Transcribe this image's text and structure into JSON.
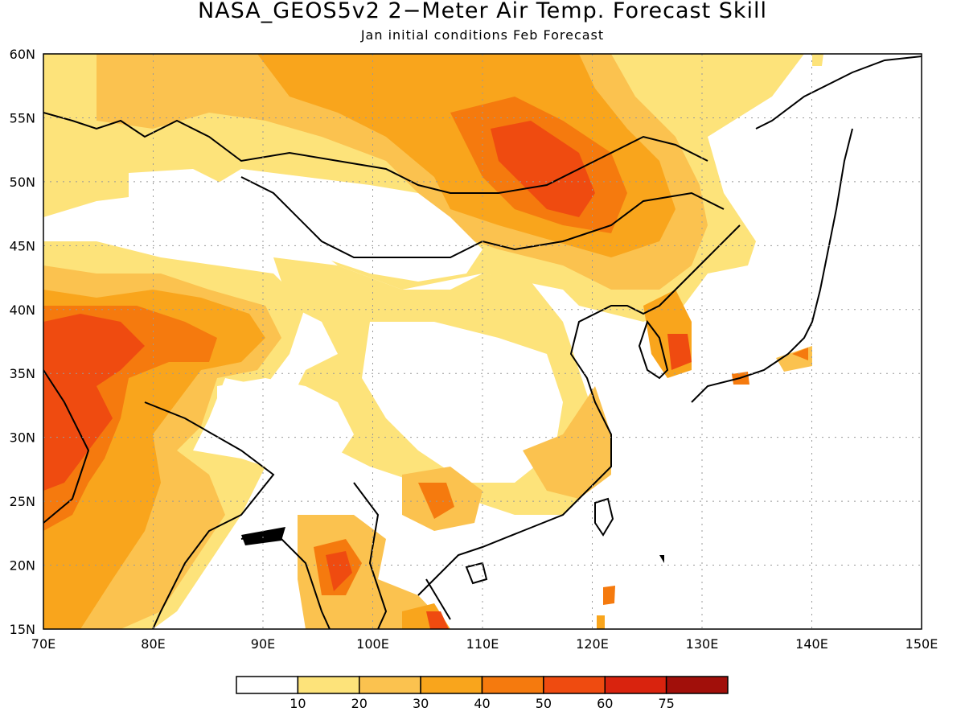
{
  "title": "NASA_GEOS5v2 2−Meter Air Temp. Forecast Skill",
  "subtitle": "Jan initial conditions  Feb Forecast",
  "map": {
    "region": "East Asia",
    "lon_range": [
      70,
      150
    ],
    "lat_range": [
      15,
      60
    ],
    "lon_ticks": [
      "70E",
      "80E",
      "90E",
      "100E",
      "110E",
      "120E",
      "130E",
      "140E",
      "150E"
    ],
    "lat_ticks": [
      "15N",
      "20N",
      "25N",
      "30N",
      "35N",
      "40N",
      "45N",
      "50N",
      "55N",
      "60N"
    ],
    "grid": "dotted"
  },
  "colorbar": {
    "labels": [
      "10",
      "20",
      "30",
      "40",
      "50",
      "60",
      "75"
    ],
    "colors": [
      "#ffffff",
      "#fde37a",
      "#fbc24f",
      "#f9a51c",
      "#f57a0e",
      "#ef4b10",
      "#d9230e",
      "#a10f0a"
    ]
  }
}
